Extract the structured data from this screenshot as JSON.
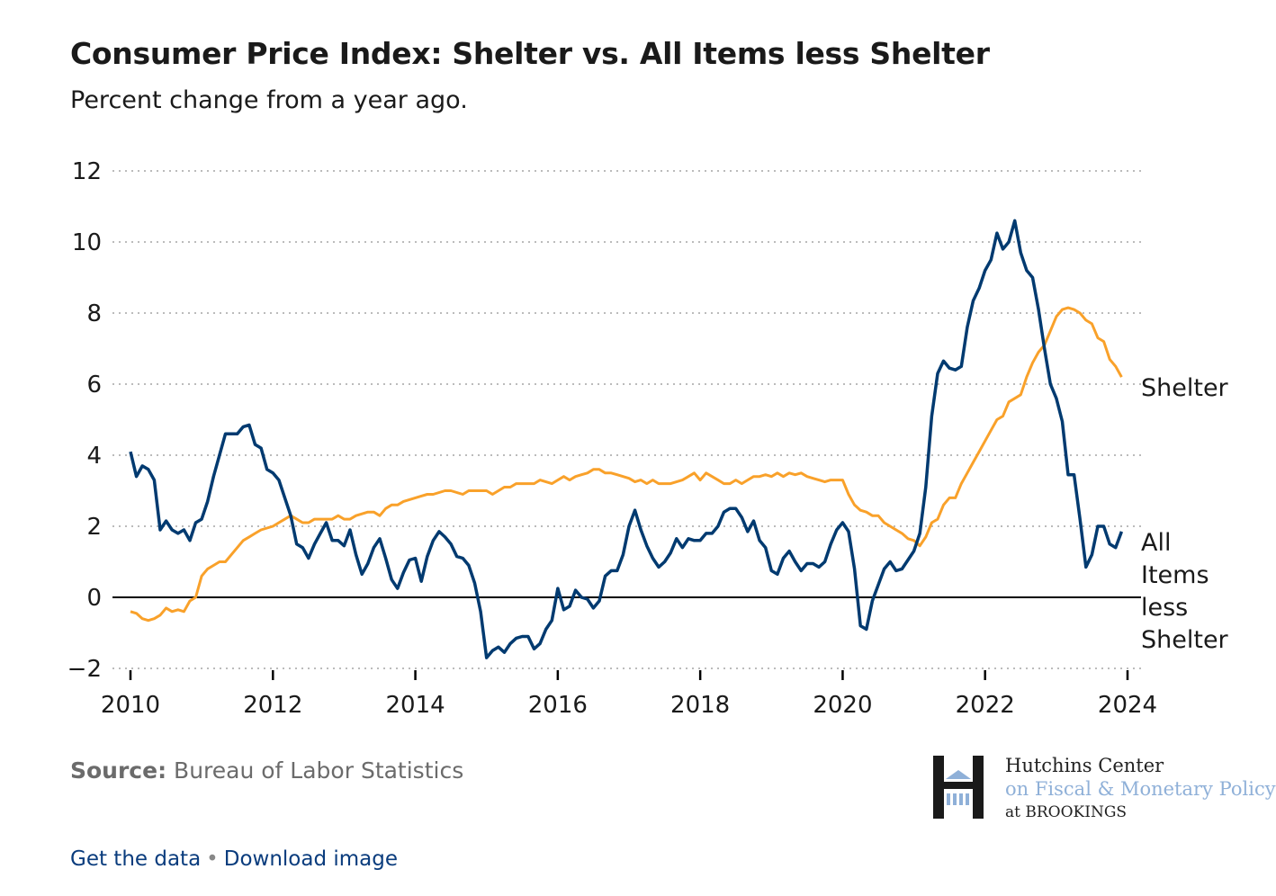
{
  "header": {
    "title": "Consumer Price Index: Shelter vs. All Items less Shelter",
    "subtitle": "Percent change from a year ago."
  },
  "chart_data": {
    "type": "line",
    "title": "Consumer Price Index: Shelter vs. All Items less Shelter",
    "subtitle": "Percent change from a year ago.",
    "x_start": "2010-01",
    "x_frequency": "monthly",
    "x_ticks": [
      "2010",
      "2012",
      "2014",
      "2016",
      "2018",
      "2020",
      "2022",
      "2024"
    ],
    "xlim": [
      "2010-01",
      "2024-01"
    ],
    "y_ticks": [
      "−2",
      "0",
      "2",
      "4",
      "6",
      "8",
      "10",
      "12"
    ],
    "ylim": [
      -2,
      12
    ],
    "grid": "horizontal dotted",
    "legend": "direct labels at right end of lines",
    "series": [
      {
        "name": "Shelter",
        "label": "Shelter",
        "color": "#f9a12a",
        "values": [
          -0.4,
          -0.45,
          -0.6,
          -0.65,
          -0.6,
          -0.5,
          -0.3,
          -0.4,
          -0.35,
          -0.4,
          -0.1,
          0.0,
          0.6,
          0.8,
          0.9,
          1.0,
          1.0,
          1.2,
          1.4,
          1.6,
          1.7,
          1.8,
          1.9,
          1.95,
          2.0,
          2.1,
          2.2,
          2.3,
          2.2,
          2.1,
          2.1,
          2.2,
          2.2,
          2.2,
          2.2,
          2.3,
          2.2,
          2.2,
          2.3,
          2.35,
          2.4,
          2.4,
          2.3,
          2.5,
          2.6,
          2.6,
          2.7,
          2.75,
          2.8,
          2.85,
          2.9,
          2.9,
          2.95,
          3.0,
          3.0,
          2.95,
          2.9,
          3.0,
          3.0,
          3.0,
          3.0,
          2.9,
          3.0,
          3.1,
          3.1,
          3.2,
          3.2,
          3.2,
          3.2,
          3.3,
          3.25,
          3.2,
          3.3,
          3.4,
          3.3,
          3.4,
          3.45,
          3.5,
          3.6,
          3.6,
          3.5,
          3.5,
          3.45,
          3.4,
          3.35,
          3.25,
          3.3,
          3.2,
          3.3,
          3.2,
          3.2,
          3.2,
          3.25,
          3.3,
          3.4,
          3.5,
          3.3,
          3.5,
          3.4,
          3.3,
          3.2,
          3.2,
          3.3,
          3.2,
          3.3,
          3.4,
          3.4,
          3.45,
          3.4,
          3.5,
          3.4,
          3.5,
          3.45,
          3.5,
          3.4,
          3.35,
          3.3,
          3.25,
          3.3,
          3.3,
          3.3,
          2.9,
          2.6,
          2.45,
          2.4,
          2.3,
          2.3,
          2.1,
          2.0,
          1.9,
          1.8,
          1.65,
          1.6,
          1.45,
          1.7,
          2.1,
          2.2,
          2.6,
          2.8,
          2.8,
          3.2,
          3.5,
          3.8,
          4.1,
          4.4,
          4.7,
          5.0,
          5.1,
          5.5,
          5.6,
          5.7,
          6.2,
          6.6,
          6.9,
          7.1,
          7.5,
          7.9,
          8.1,
          8.15,
          8.1,
          8.0,
          7.8,
          7.7,
          7.3,
          7.2,
          6.7,
          6.5,
          6.2
        ]
      },
      {
        "name": "All Items less Shelter",
        "label": "All Items less Shelter",
        "color": "#003a70",
        "values": [
          4.1,
          3.4,
          3.7,
          3.6,
          3.3,
          1.9,
          2.15,
          1.9,
          1.8,
          1.9,
          1.6,
          2.1,
          2.2,
          2.7,
          3.4,
          4.0,
          4.6,
          4.6,
          4.6,
          4.8,
          4.85,
          4.3,
          4.2,
          3.6,
          3.5,
          3.3,
          2.8,
          2.3,
          1.5,
          1.4,
          1.1,
          1.5,
          1.8,
          2.1,
          1.6,
          1.6,
          1.45,
          1.9,
          1.2,
          0.65,
          0.95,
          1.4,
          1.65,
          1.1,
          0.5,
          0.25,
          0.7,
          1.05,
          1.1,
          0.45,
          1.15,
          1.6,
          1.85,
          1.7,
          1.5,
          1.15,
          1.1,
          0.9,
          0.4,
          -0.4,
          -1.7,
          -1.5,
          -1.4,
          -1.55,
          -1.3,
          -1.15,
          -1.1,
          -1.1,
          -1.45,
          -1.3,
          -0.9,
          -0.65,
          0.25,
          -0.35,
          -0.25,
          0.2,
          0.0,
          -0.05,
          -0.3,
          -0.1,
          0.6,
          0.75,
          0.75,
          1.2,
          2.0,
          2.45,
          1.9,
          1.45,
          1.1,
          0.85,
          1.0,
          1.25,
          1.65,
          1.4,
          1.65,
          1.6,
          1.6,
          1.8,
          1.8,
          2.0,
          2.4,
          2.5,
          2.5,
          2.25,
          1.85,
          2.15,
          1.6,
          1.4,
          0.75,
          0.65,
          1.1,
          1.3,
          1.0,
          0.75,
          0.95,
          0.95,
          0.85,
          1.0,
          1.5,
          1.9,
          2.1,
          1.85,
          0.8,
          -0.8,
          -0.9,
          -0.1,
          0.35,
          0.8,
          1.0,
          0.75,
          0.8,
          1.05,
          1.3,
          1.8,
          3.1,
          5.1,
          6.3,
          6.65,
          6.45,
          6.4,
          6.5,
          7.6,
          8.35,
          8.7,
          9.2,
          9.5,
          10.25,
          9.8,
          10.0,
          10.6,
          9.7,
          9.2,
          9.0,
          8.1,
          7.0,
          6.0,
          5.6,
          4.95,
          3.45,
          3.45,
          2.2,
          0.85,
          1.2,
          2.0,
          2.0,
          1.5,
          1.4,
          1.85
        ]
      }
    ]
  },
  "footer": {
    "source_label": "Source:",
    "source_text": "Bureau of Labor Statistics",
    "logo": {
      "line1": "Hutchins Center",
      "line2": "on Fiscal & Monetary Policy",
      "line3": "at BROOKINGS"
    },
    "links": {
      "get_data": "Get the data",
      "separator": "•",
      "download": "Download image"
    }
  }
}
